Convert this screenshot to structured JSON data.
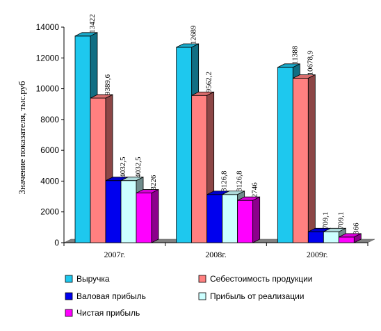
{
  "chart_data": {
    "type": "bar",
    "title": "",
    "xlabel": "",
    "ylabel": "Значение показателя, тыс.руб",
    "ylim": [
      0,
      14000
    ],
    "yticks": [
      "0",
      "2000",
      "4000",
      "6000",
      "8000",
      "10000",
      "12000",
      "14000"
    ],
    "grid": false,
    "legend_position": "bottom",
    "categories": [
      "2007г.",
      "2008г.",
      "2009г."
    ],
    "series": [
      {
        "name": "Выручка",
        "values": [
          13422,
          12689,
          11388
        ],
        "labels": [
          "13422",
          "12689",
          "11388"
        ],
        "color": "#1EC8EE"
      },
      {
        "name": "Себестоимость продукции",
        "values": [
          9389.6,
          9562.2,
          10678.9
        ],
        "labels": [
          "9389,6",
          "9562,2",
          "10678,9"
        ],
        "color": "#FF8080"
      },
      {
        "name": "Валовая прибыль",
        "values": [
          4032.5,
          3126.8,
          709.1
        ],
        "labels": [
          "4032,5",
          "3126,8",
          "709,1"
        ],
        "color": "#0000EE"
      },
      {
        "name": "Прибыль от реализации",
        "values": [
          4032.5,
          3126.8,
          709.1
        ],
        "labels": [
          "4032,5",
          "3126,8",
          "709,1"
        ],
        "color": "#CCFFFF"
      },
      {
        "name": "Чистая прибыль",
        "values": [
          3226,
          2746,
          366
        ],
        "labels": [
          "3226",
          "2746",
          "366"
        ],
        "color": "#FF00FF"
      }
    ]
  }
}
